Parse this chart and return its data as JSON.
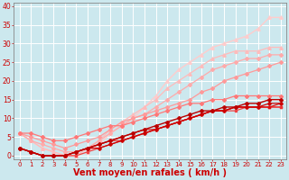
{
  "bg_color": "#cce8ee",
  "grid_color": "#ffffff",
  "xlabel": "Vent moyen/en rafales ( km/h )",
  "xlabel_color": "#cc0000",
  "xlabel_fontsize": 7,
  "xtick_fontsize": 5,
  "ytick_fontsize": 5.5,
  "xlim": [
    -0.5,
    23.5
  ],
  "ylim": [
    -1,
    41
  ],
  "yticks": [
    0,
    5,
    10,
    15,
    20,
    25,
    30,
    35,
    40
  ],
  "xticks": [
    0,
    1,
    2,
    3,
    4,
    5,
    6,
    7,
    8,
    9,
    10,
    11,
    12,
    13,
    14,
    15,
    16,
    17,
    18,
    19,
    20,
    21,
    22,
    23
  ],
  "series": [
    {
      "x": [
        0,
        1,
        2,
        3,
        4,
        5,
        6,
        7,
        8,
        9,
        10,
        11,
        12,
        13,
        14,
        15,
        16,
        17,
        18,
        19,
        20,
        21,
        22,
        23
      ],
      "y": [
        2,
        1,
        0,
        0,
        0,
        1,
        2,
        3,
        4,
        5,
        6,
        7,
        8,
        9,
        10,
        11,
        12,
        12,
        13,
        13,
        14,
        14,
        15,
        15
      ],
      "color": "#bb0000",
      "lw": 1.0,
      "marker": "P",
      "markersize": 2.5,
      "zorder": 5
    },
    {
      "x": [
        0,
        1,
        2,
        3,
        4,
        5,
        6,
        7,
        8,
        9,
        10,
        11,
        12,
        13,
        14,
        15,
        16,
        17,
        18,
        19,
        20,
        21,
        22,
        23
      ],
      "y": [
        2,
        1,
        0,
        0,
        0,
        1,
        2,
        2,
        3,
        4,
        5,
        6,
        7,
        8,
        9,
        10,
        11,
        12,
        12,
        13,
        13,
        13,
        14,
        14
      ],
      "color": "#cc0000",
      "lw": 0.9,
      "marker": "D",
      "markersize": 1.8,
      "zorder": 5
    },
    {
      "x": [
        0,
        1,
        2,
        3,
        4,
        5,
        6,
        7,
        8,
        9,
        10,
        11,
        12,
        13,
        14,
        15,
        16,
        17,
        18,
        19,
        20,
        21,
        22,
        23
      ],
      "y": [
        2,
        1,
        0,
        0,
        0,
        1,
        2,
        3,
        4,
        5,
        6,
        7,
        7,
        8,
        9,
        10,
        11,
        12,
        12,
        13,
        13,
        13,
        13,
        14
      ],
      "color": "#dd1111",
      "lw": 0.9,
      "marker": "s",
      "markersize": 1.8,
      "zorder": 5
    },
    {
      "x": [
        0,
        1,
        2,
        3,
        4,
        5,
        6,
        7,
        8,
        9,
        10,
        11,
        12,
        13,
        14,
        15,
        16,
        17,
        18,
        19,
        20,
        21,
        22,
        23
      ],
      "y": [
        2,
        1,
        0,
        0,
        0,
        1,
        2,
        3,
        4,
        4,
        5,
        6,
        7,
        8,
        9,
        10,
        11,
        12,
        12,
        13,
        13,
        13,
        13,
        13
      ],
      "color": "#ee3333",
      "lw": 0.9,
      "marker": "s",
      "markersize": 1.8,
      "zorder": 4
    },
    {
      "x": [
        0,
        1,
        2,
        3,
        4,
        5,
        6,
        7,
        8,
        9,
        10,
        11,
        12,
        13,
        14,
        15,
        16,
        17,
        18,
        19,
        20,
        21,
        22,
        23
      ],
      "y": [
        2,
        1,
        0,
        0,
        0,
        0,
        1,
        2,
        3,
        4,
        5,
        6,
        7,
        8,
        9,
        10,
        11,
        12,
        12,
        12,
        13,
        13,
        13,
        13
      ],
      "color": "#ee4444",
      "lw": 0.9,
      "marker": "s",
      "markersize": 1.8,
      "zorder": 4
    },
    {
      "x": [
        0,
        1,
        2,
        3,
        4,
        5,
        6,
        7,
        8,
        9,
        10,
        11,
        12,
        13,
        14,
        15,
        16,
        17,
        18,
        19,
        20,
        21,
        22,
        23
      ],
      "y": [
        6,
        6,
        5,
        4,
        4,
        5,
        6,
        7,
        8,
        8,
        9,
        10,
        11,
        12,
        13,
        14,
        14,
        15,
        15,
        16,
        16,
        16,
        16,
        16
      ],
      "color": "#ff7777",
      "lw": 0.9,
      "marker": "D",
      "markersize": 2.0,
      "zorder": 3
    },
    {
      "x": [
        0,
        1,
        2,
        3,
        4,
        5,
        6,
        7,
        8,
        9,
        10,
        11,
        12,
        13,
        14,
        15,
        16,
        17,
        18,
        19,
        20,
        21,
        22,
        23
      ],
      "y": [
        6,
        5,
        4,
        3,
        2,
        3,
        4,
        5,
        7,
        9,
        10,
        11,
        12,
        13,
        14,
        15,
        17,
        18,
        20,
        21,
        22,
        23,
        24,
        25
      ],
      "color": "#ff9999",
      "lw": 0.9,
      "marker": "D",
      "markersize": 2.0,
      "zorder": 3
    },
    {
      "x": [
        0,
        1,
        2,
        3,
        4,
        5,
        6,
        7,
        8,
        9,
        10,
        11,
        12,
        13,
        14,
        15,
        16,
        17,
        18,
        19,
        20,
        21,
        22,
        23
      ],
      "y": [
        6,
        4,
        3,
        2,
        1,
        1,
        2,
        4,
        6,
        8,
        10,
        11,
        13,
        15,
        17,
        19,
        21,
        23,
        24,
        25,
        26,
        26,
        27,
        27
      ],
      "color": "#ffaaaa",
      "lw": 0.9,
      "marker": "D",
      "markersize": 2.0,
      "zorder": 3
    },
    {
      "x": [
        0,
        1,
        2,
        3,
        4,
        5,
        6,
        7,
        8,
        9,
        10,
        11,
        12,
        13,
        14,
        15,
        16,
        17,
        18,
        19,
        20,
        21,
        22,
        23
      ],
      "y": [
        6,
        4,
        2,
        1,
        0,
        0,
        2,
        4,
        7,
        9,
        11,
        13,
        15,
        18,
        20,
        22,
        24,
        26,
        27,
        28,
        28,
        28,
        29,
        29
      ],
      "color": "#ffbbbb",
      "lw": 0.9,
      "marker": "^",
      "markersize": 2.5,
      "zorder": 2
    },
    {
      "x": [
        0,
        1,
        2,
        3,
        4,
        5,
        6,
        7,
        8,
        9,
        10,
        11,
        12,
        13,
        14,
        15,
        16,
        17,
        18,
        19,
        20,
        21,
        22,
        23
      ],
      "y": [
        6,
        4,
        2,
        1,
        0,
        0,
        1,
        3,
        6,
        8,
        10,
        13,
        16,
        20,
        23,
        25,
        27,
        29,
        30,
        31,
        32,
        34,
        37,
        37
      ],
      "color": "#ffcccc",
      "lw": 1.0,
      "marker": "^",
      "markersize": 2.5,
      "zorder": 2
    }
  ]
}
